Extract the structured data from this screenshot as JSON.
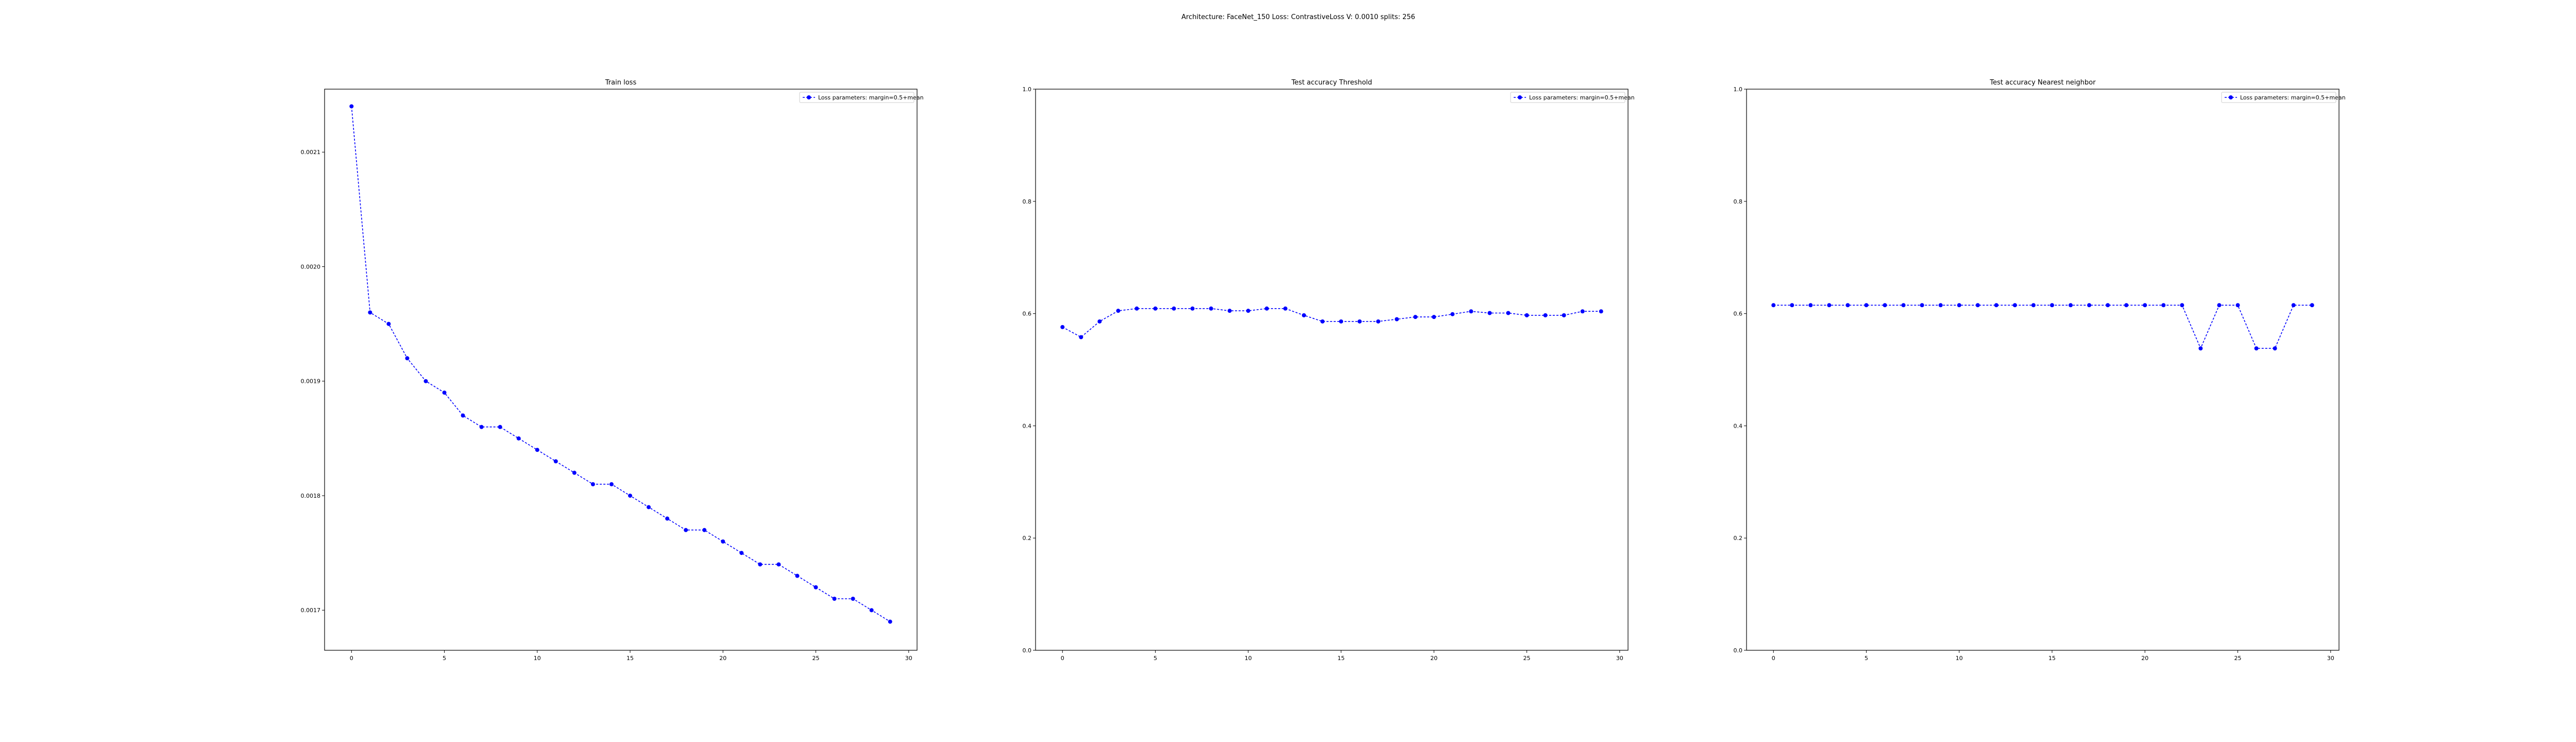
{
  "figure": {
    "suptitle": "Architecture: FaceNet_150  Loss: ContrastiveLoss V: 0.0010 splits: 256"
  },
  "colors": {
    "series": "#0000ff",
    "axes": "#000000"
  },
  "chart_data": [
    {
      "type": "line",
      "title": "Train loss",
      "xlabel": "",
      "ylabel": "",
      "xlim": [
        -1.45,
        30.45
      ],
      "ylim": [
        0.001665,
        0.002155
      ],
      "xticks": [
        0,
        5,
        10,
        15,
        20,
        25,
        30
      ],
      "xtick_labels": [
        "0",
        "5",
        "10",
        "15",
        "20",
        "25",
        "30"
      ],
      "yticks": [
        0.0017,
        0.0018,
        0.0019,
        0.002,
        0.0021
      ],
      "ytick_labels": [
        "0.0017",
        "0.0018",
        "0.0019",
        "0.0020",
        "0.0021"
      ],
      "grid": false,
      "legend": "top-right",
      "series": [
        {
          "name": "Loss parameters: margin=0.5+mean",
          "x": [
            0,
            1,
            2,
            3,
            4,
            5,
            6,
            7,
            8,
            9,
            10,
            11,
            12,
            13,
            14,
            15,
            16,
            17,
            18,
            19,
            20,
            21,
            22,
            23,
            24,
            25,
            26,
            27,
            28,
            29
          ],
          "y": [
            0.00214,
            0.00196,
            0.00195,
            0.00192,
            0.0019,
            0.00189,
            0.00187,
            0.00186,
            0.00186,
            0.00185,
            0.00184,
            0.00183,
            0.00182,
            0.00181,
            0.00181,
            0.0018,
            0.00179,
            0.00178,
            0.00177,
            0.00177,
            0.00176,
            0.00175,
            0.00174,
            0.00174,
            0.00173,
            0.00172,
            0.00171,
            0.00171,
            0.0017,
            0.00169
          ]
        }
      ]
    },
    {
      "type": "line",
      "title": "Test accuracy Threshold",
      "xlabel": "",
      "ylabel": "",
      "xlim": [
        -1.45,
        30.45
      ],
      "ylim": [
        0.0,
        1.0
      ],
      "xticks": [
        0,
        5,
        10,
        15,
        20,
        25,
        30
      ],
      "xtick_labels": [
        "0",
        "5",
        "10",
        "15",
        "20",
        "25",
        "30"
      ],
      "yticks": [
        0.0,
        0.2,
        0.4,
        0.6,
        0.8,
        1.0
      ],
      "ytick_labels": [
        "0.0",
        "0.2",
        "0.4",
        "0.6",
        "0.8",
        "1.0"
      ],
      "grid": false,
      "legend": "top-right",
      "series": [
        {
          "name": "Loss parameters: margin=0.5+mean",
          "x": [
            0,
            1,
            2,
            3,
            4,
            5,
            6,
            7,
            8,
            9,
            10,
            11,
            12,
            13,
            14,
            15,
            16,
            17,
            18,
            19,
            20,
            21,
            22,
            23,
            24,
            25,
            26,
            27,
            28,
            29
          ],
          "y": [
            0.576,
            0.558,
            0.586,
            0.605,
            0.609,
            0.609,
            0.609,
            0.609,
            0.609,
            0.605,
            0.605,
            0.609,
            0.609,
            0.597,
            0.586,
            0.586,
            0.586,
            0.586,
            0.59,
            0.594,
            0.594,
            0.599,
            0.604,
            0.601,
            0.601,
            0.597,
            0.597,
            0.597,
            0.604,
            0.604
          ]
        }
      ]
    },
    {
      "type": "line",
      "title": "Test accuracy Nearest neighbor",
      "xlabel": "",
      "ylabel": "",
      "xlim": [
        -1.45,
        30.45
      ],
      "ylim": [
        0.0,
        1.0
      ],
      "xticks": [
        0,
        5,
        10,
        15,
        20,
        25,
        30
      ],
      "xtick_labels": [
        "0",
        "5",
        "10",
        "15",
        "20",
        "25",
        "30"
      ],
      "yticks": [
        0.0,
        0.2,
        0.4,
        0.6,
        0.8,
        1.0
      ],
      "ytick_labels": [
        "0.0",
        "0.2",
        "0.4",
        "0.6",
        "0.8",
        "1.0"
      ],
      "grid": false,
      "legend": "top-right",
      "series": [
        {
          "name": "Loss parameters: margin=0.5+mean",
          "x": [
            0,
            1,
            2,
            3,
            4,
            5,
            6,
            7,
            8,
            9,
            10,
            11,
            12,
            13,
            14,
            15,
            16,
            17,
            18,
            19,
            20,
            21,
            22,
            23,
            24,
            25,
            26,
            27,
            28,
            29
          ],
          "y": [
            0.615,
            0.615,
            0.615,
            0.615,
            0.615,
            0.615,
            0.615,
            0.615,
            0.615,
            0.615,
            0.615,
            0.615,
            0.615,
            0.615,
            0.615,
            0.615,
            0.615,
            0.615,
            0.615,
            0.615,
            0.615,
            0.615,
            0.615,
            0.538,
            0.615,
            0.615,
            0.538,
            0.538,
            0.615,
            0.615
          ]
        }
      ]
    }
  ]
}
